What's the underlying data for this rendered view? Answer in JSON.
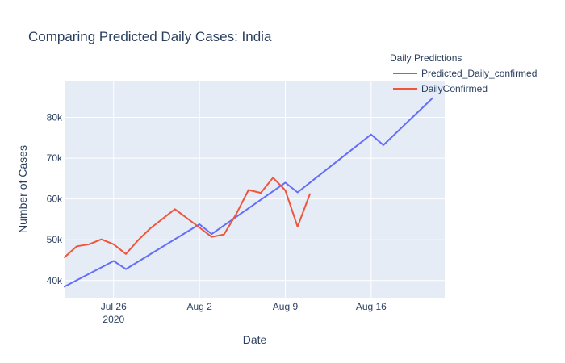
{
  "chart_data": {
    "type": "line",
    "title": "Comparing Predicted Daily Cases: India",
    "xlabel": "Date",
    "ylabel": "Number of Cases",
    "xlim": [
      "2020-07-22",
      "2020-08-22"
    ],
    "ylim": [
      35800,
      89000
    ],
    "grid": true,
    "x_ticks": [
      {
        "date": "2020-07-26",
        "label": "Jul 26",
        "sublabel": "2020"
      },
      {
        "date": "2020-08-02",
        "label": "Aug 2",
        "sublabel": ""
      },
      {
        "date": "2020-08-09",
        "label": "Aug 9",
        "sublabel": ""
      },
      {
        "date": "2020-08-16",
        "label": "Aug 16",
        "sublabel": ""
      }
    ],
    "y_ticks": [
      {
        "value": 40000,
        "label": "40k"
      },
      {
        "value": 50000,
        "label": "50k"
      },
      {
        "value": 60000,
        "label": "60k"
      },
      {
        "value": 70000,
        "label": "70k"
      },
      {
        "value": 80000,
        "label": "80k"
      }
    ],
    "legend": {
      "title": "Daily Predictions",
      "placement": "top-right"
    },
    "series": [
      {
        "name": "Predicted_Daily_confirmed",
        "color": "#636efa",
        "points": [
          {
            "x": "2020-07-22",
            "y": 38500
          },
          {
            "x": "2020-07-26",
            "y": 44800
          },
          {
            "x": "2020-07-27",
            "y": 42800
          },
          {
            "x": "2020-08-02",
            "y": 53800
          },
          {
            "x": "2020-08-03",
            "y": 51400
          },
          {
            "x": "2020-08-09",
            "y": 64000
          },
          {
            "x": "2020-08-10",
            "y": 61600
          },
          {
            "x": "2020-08-16",
            "y": 75800
          },
          {
            "x": "2020-08-17",
            "y": 73200
          },
          {
            "x": "2020-08-21",
            "y": 84700
          }
        ]
      },
      {
        "name": "DailyConfirmed",
        "color": "#ef553b",
        "points": [
          {
            "x": "2020-07-22",
            "y": 45700
          },
          {
            "x": "2020-07-23",
            "y": 48400
          },
          {
            "x": "2020-07-24",
            "y": 48900
          },
          {
            "x": "2020-07-25",
            "y": 50100
          },
          {
            "x": "2020-07-26",
            "y": 48900
          },
          {
            "x": "2020-07-27",
            "y": 46500
          },
          {
            "x": "2020-07-28",
            "y": 49900
          },
          {
            "x": "2020-07-29",
            "y": 52800
          },
          {
            "x": "2020-07-31",
            "y": 57500
          },
          {
            "x": "2020-08-02",
            "y": 53000
          },
          {
            "x": "2020-08-03",
            "y": 50700
          },
          {
            "x": "2020-08-04",
            "y": 51300
          },
          {
            "x": "2020-08-05",
            "y": 56300
          },
          {
            "x": "2020-08-06",
            "y": 62200
          },
          {
            "x": "2020-08-07",
            "y": 61500
          },
          {
            "x": "2020-08-08",
            "y": 65200
          },
          {
            "x": "2020-08-09",
            "y": 62100
          },
          {
            "x": "2020-08-10",
            "y": 53200
          },
          {
            "x": "2020-08-11",
            "y": 61200
          }
        ]
      }
    ]
  }
}
